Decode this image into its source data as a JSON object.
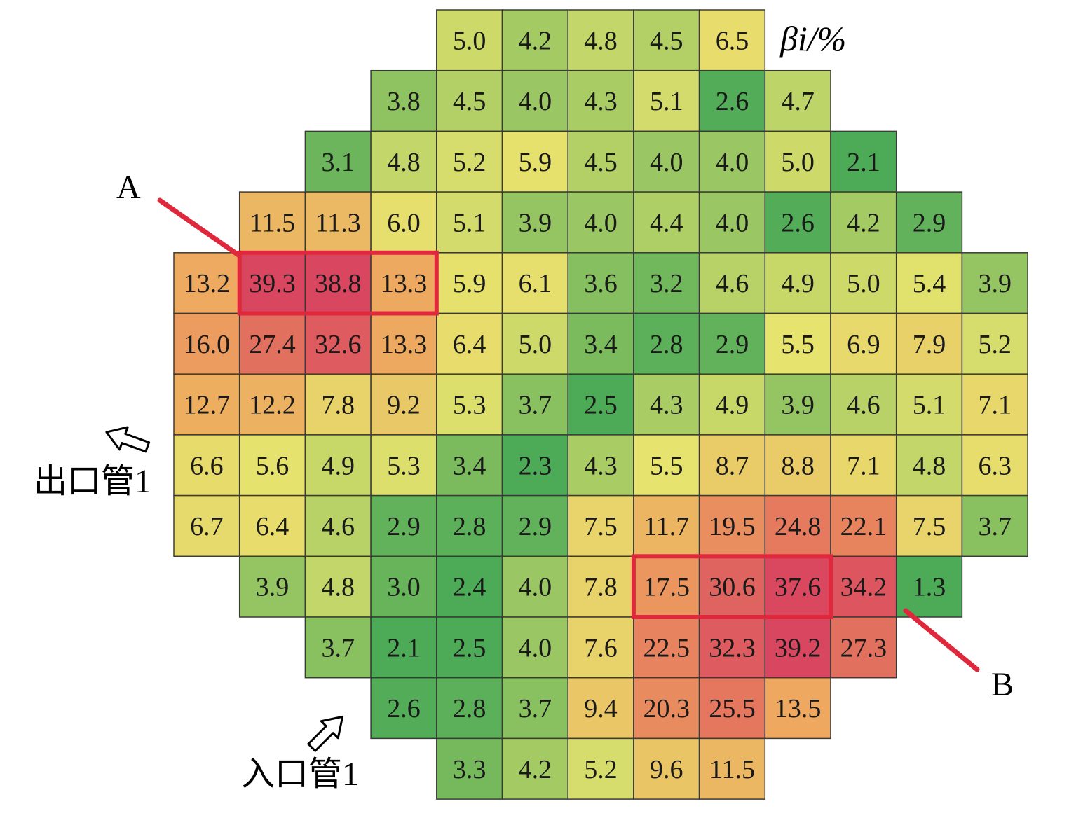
{
  "chart_data": {
    "type": "heatmap",
    "legend_title": "βi/%",
    "markers": {
      "a": "A",
      "b": "B"
    },
    "pipes": {
      "outlet": "出口管1",
      "inlet": "入口管1"
    },
    "color_scale": {
      "low": "#4daa57",
      "mid": "#e6e36e",
      "orange": "#eea45e",
      "high": "#d9465f",
      "highlight": "#e0283c",
      "grid": "#3a3a3a"
    },
    "highlight_groups": [
      {
        "marker": "A",
        "row": 4,
        "cols": [
          1,
          2,
          3
        ]
      },
      {
        "marker": "B",
        "row": 9,
        "cols": [
          7,
          8,
          9
        ]
      }
    ],
    "rows": [
      {
        "start_col": 4,
        "values": [
          "5.0",
          "4.2",
          "4.8",
          "4.5",
          "6.5"
        ]
      },
      {
        "start_col": 3,
        "values": [
          "3.8",
          "4.5",
          "4.0",
          "4.3",
          "5.1",
          "2.6",
          "4.7"
        ]
      },
      {
        "start_col": 2,
        "values": [
          "3.1",
          "4.8",
          "5.2",
          "5.9",
          "4.5",
          "4.0",
          "4.0",
          "5.0",
          "2.1"
        ]
      },
      {
        "start_col": 1,
        "values": [
          "11.5",
          "11.3",
          "6.0",
          "5.1",
          "3.9",
          "4.0",
          "4.4",
          "4.0",
          "2.6",
          "4.2",
          "2.9"
        ]
      },
      {
        "start_col": 0,
        "values": [
          "13.2",
          "39.3",
          "38.8",
          "13.3",
          "5.9",
          "6.1",
          "3.6",
          "3.2",
          "4.6",
          "4.9",
          "5.0",
          "5.4",
          "3.9"
        ]
      },
      {
        "start_col": 0,
        "values": [
          "16.0",
          "27.4",
          "32.6",
          "13.3",
          "6.4",
          "5.0",
          "3.4",
          "2.8",
          "2.9",
          "5.5",
          "6.9",
          "7.9",
          "5.2"
        ]
      },
      {
        "start_col": 0,
        "values": [
          "12.7",
          "12.2",
          "7.8",
          "9.2",
          "5.3",
          "3.7",
          "2.5",
          "4.3",
          "4.9",
          "3.9",
          "4.6",
          "5.1",
          "7.1"
        ]
      },
      {
        "start_col": 0,
        "values": [
          "6.6",
          "5.6",
          "4.9",
          "5.3",
          "3.4",
          "2.3",
          "4.3",
          "5.5",
          "8.7",
          "8.8",
          "7.1",
          "4.8",
          "6.3"
        ]
      },
      {
        "start_col": 0,
        "values": [
          "6.7",
          "6.4",
          "4.6",
          "2.9",
          "2.8",
          "2.9",
          "7.5",
          "11.7",
          "19.5",
          "24.8",
          "22.1",
          "7.5",
          "3.7"
        ]
      },
      {
        "start_col": 1,
        "values": [
          "3.9",
          "4.8",
          "3.0",
          "2.4",
          "4.0",
          "7.8",
          "17.5",
          "30.6",
          "37.6",
          "34.2",
          "1.3"
        ]
      },
      {
        "start_col": 2,
        "values": [
          "3.7",
          "2.1",
          "2.5",
          "4.0",
          "7.6",
          "22.5",
          "32.3",
          "39.2",
          "27.3"
        ]
      },
      {
        "start_col": 3,
        "values": [
          "2.6",
          "2.8",
          "3.7",
          "9.4",
          "20.3",
          "25.5",
          "13.5"
        ]
      },
      {
        "start_col": 4,
        "values": [
          "3.3",
          "4.2",
          "5.2",
          "9.6",
          "11.5"
        ]
      }
    ]
  }
}
